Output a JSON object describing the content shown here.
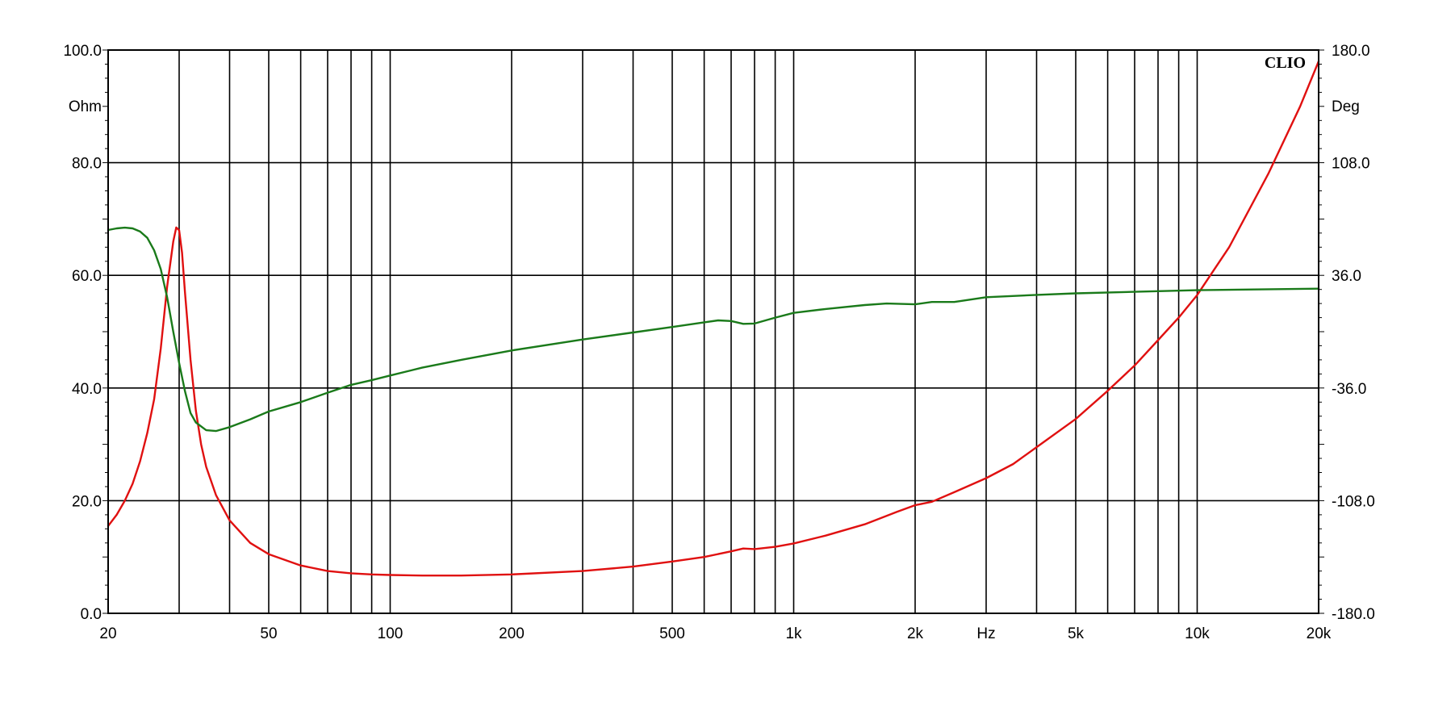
{
  "chart_data": {
    "type": "line",
    "brand": "CLIO",
    "x_scale": "log",
    "xlim": [
      20,
      20000
    ],
    "x_unit": "Hz",
    "x_tick_labels": [
      {
        "value": 20,
        "label": "20"
      },
      {
        "value": 50,
        "label": "50"
      },
      {
        "value": 100,
        "label": "100"
      },
      {
        "value": 200,
        "label": "200"
      },
      {
        "value": 500,
        "label": "500"
      },
      {
        "value": 1000,
        "label": "1k"
      },
      {
        "value": 2000,
        "label": "2k"
      },
      {
        "value": 5000,
        "label": "5k"
      },
      {
        "value": 10000,
        "label": "10k"
      },
      {
        "value": 20000,
        "label": "20k"
      }
    ],
    "x_grid": [
      30,
      40,
      50,
      60,
      70,
      80,
      90,
      100,
      200,
      300,
      400,
      500,
      600,
      700,
      800,
      900,
      1000,
      2000,
      3000,
      4000,
      5000,
      6000,
      7000,
      8000,
      9000,
      10000
    ],
    "y_left": {
      "unit": "Ohm",
      "lim": [
        0,
        100
      ],
      "ticks": [
        {
          "value": 0,
          "label": "0.0"
        },
        {
          "value": 20,
          "label": "20.0"
        },
        {
          "value": 40,
          "label": "40.0"
        },
        {
          "value": 60,
          "label": "60.0"
        },
        {
          "value": 80,
          "label": "80.0"
        },
        {
          "value": 100,
          "label": "100.0"
        }
      ]
    },
    "y_right": {
      "unit": "Deg",
      "lim": [
        -180,
        180
      ],
      "ticks": [
        {
          "value": -180,
          "label": "-180.0"
        },
        {
          "value": -108,
          "label": "-108.0"
        },
        {
          "value": -36,
          "label": "-36.0"
        },
        {
          "value": 36,
          "label": "36.0"
        },
        {
          "value": 108,
          "label": "108.0"
        },
        {
          "value": 180,
          "label": "180.0"
        }
      ]
    },
    "grid": true,
    "series": [
      {
        "axis": "left",
        "color": "#e01010",
        "x": [
          20,
          21,
          22,
          23,
          24,
          25,
          26,
          27,
          28,
          29,
          29.5,
          30,
          30.5,
          31,
          32,
          33,
          34,
          35,
          37,
          40,
          45,
          50,
          60,
          70,
          80,
          90,
          100,
          120,
          150,
          200,
          300,
          400,
          500,
          600,
          700,
          750,
          800,
          900,
          1000,
          1200,
          1500,
          1800,
          2000,
          2200,
          2500,
          3000,
          3500,
          4000,
          5000,
          6000,
          7000,
          8000,
          9000,
          10000,
          12000,
          15000,
          18000,
          20000
        ],
        "y": [
          15.5,
          17.5,
          20,
          23,
          27,
          32,
          38,
          47,
          58,
          66,
          68.5,
          68,
          64,
          57,
          45,
          36,
          30,
          26,
          21,
          16.5,
          12.5,
          10.5,
          8.5,
          7.5,
          7.1,
          6.9,
          6.8,
          6.7,
          6.7,
          6.9,
          7.5,
          8.3,
          9.2,
          10,
          11,
          11.5,
          11.4,
          11.8,
          12.4,
          13.8,
          15.8,
          18,
          19.2,
          19.8,
          21.5,
          24,
          26.5,
          29.5,
          34.5,
          39.5,
          44,
          48.5,
          52.5,
          56.5,
          65,
          78,
          90,
          98
        ]
      },
      {
        "axis": "right",
        "color": "#1a7a1a",
        "x": [
          20,
          21,
          22,
          23,
          24,
          25,
          26,
          27,
          28,
          29,
          30,
          31,
          32,
          33,
          35,
          37,
          40,
          45,
          50,
          60,
          70,
          80,
          90,
          100,
          120,
          150,
          200,
          300,
          400,
          500,
          600,
          650,
          700,
          750,
          800,
          900,
          1000,
          1200,
          1500,
          1700,
          2000,
          2200,
          2500,
          3000,
          4000,
          5000,
          7000,
          10000,
          20000
        ],
        "y": [
          65,
          66,
          66.5,
          66,
          64,
          60,
          52,
          40,
          22,
          0,
          -20,
          -38,
          -52,
          -58,
          -63,
          -63.5,
          -61,
          -56,
          -51,
          -45,
          -39,
          -34,
          -31,
          -28,
          -23,
          -18,
          -12,
          -5,
          -0.5,
          3,
          6,
          7.2,
          6.8,
          5,
          5.2,
          9,
          12,
          14.5,
          17,
          18,
          17.5,
          19,
          19,
          22,
          23.5,
          24.5,
          25.5,
          26.5,
          27.5
        ]
      }
    ]
  }
}
